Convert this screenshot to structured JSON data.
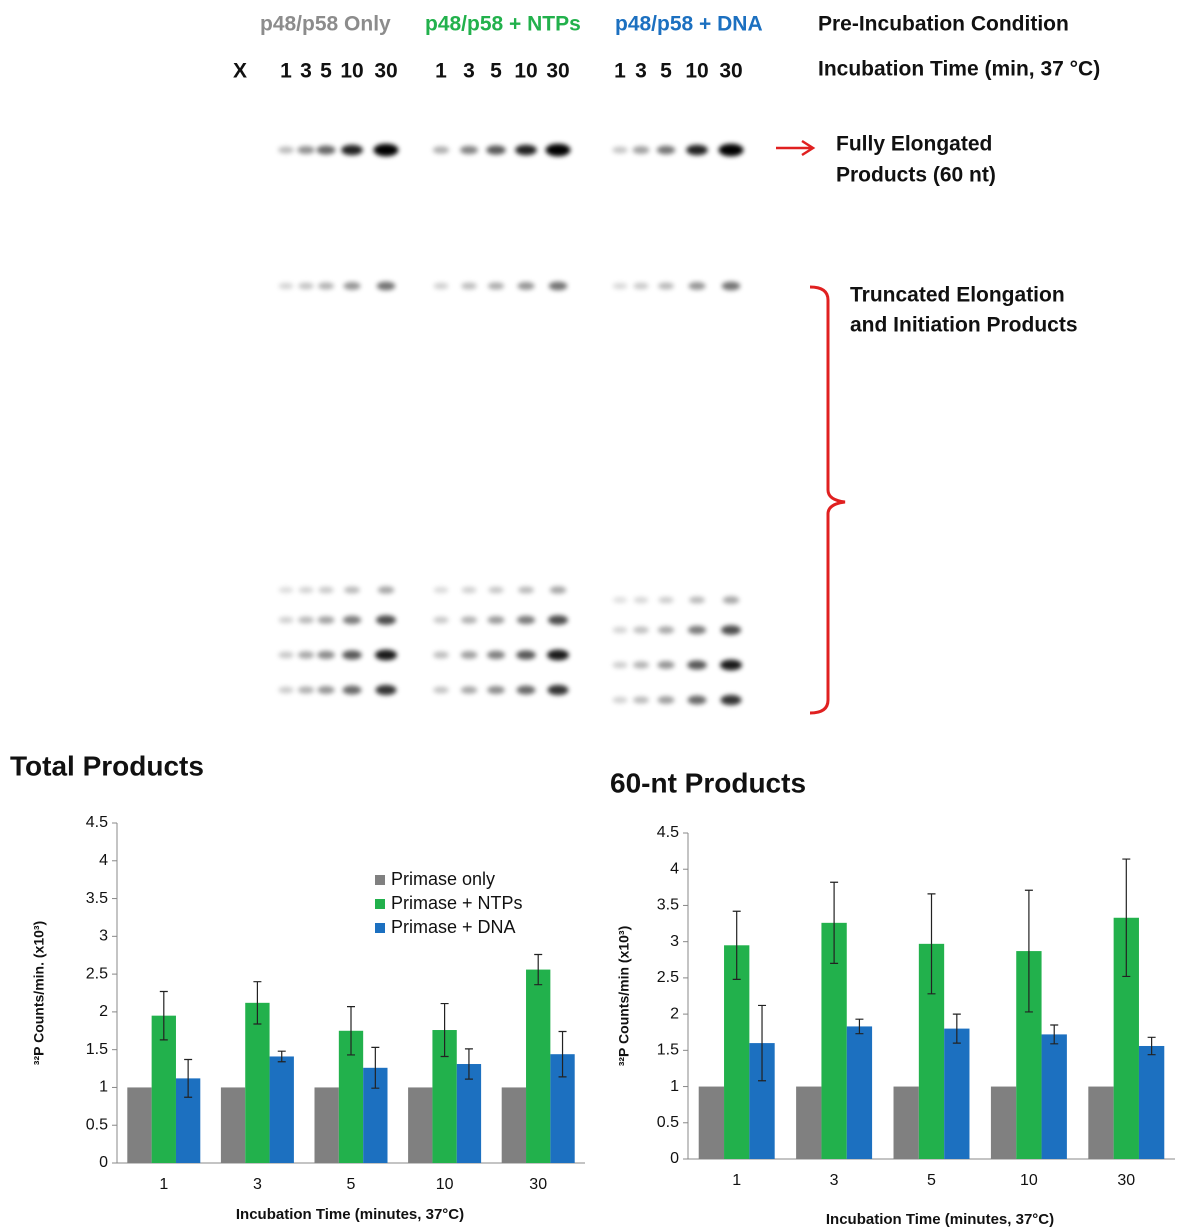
{
  "gel": {
    "conditions": [
      "p48/p58 Only",
      "p48/p58 + NTPs",
      "p48/p58 + DNA"
    ],
    "condition_heading": "Pre-Incubation Condition",
    "lane_labels": [
      "X",
      "1",
      "3",
      "5",
      "10",
      "30",
      "1",
      "3",
      "5",
      "10",
      "30",
      "1",
      "3",
      "5",
      "10",
      "30"
    ],
    "time_heading": "Incubation Time (min, 37 °C)",
    "full_label": [
      "Fully Elongated",
      "Products (60 nt)"
    ],
    "truncated_label": [
      "Truncated Elongation",
      "and Initiation Products"
    ]
  },
  "chart_data": [
    {
      "type": "bar",
      "title": "Total Products",
      "ylabel": "³²P Counts/min. (x10³)",
      "xlabel": "Incubation Time (minutes, 37°C)",
      "categories": [
        "1",
        "3",
        "5",
        "10",
        "30"
      ],
      "series": [
        {
          "name": "Primase only",
          "color": "#808080",
          "values": [
            1,
            1,
            1,
            1,
            1
          ]
        },
        {
          "name": "Primase + NTPs",
          "color": "#22b14c",
          "values": [
            1.95,
            2.12,
            1.75,
            1.76,
            2.56
          ],
          "errors": [
            0.32,
            0.28,
            0.32,
            0.35,
            0.2
          ]
        },
        {
          "name": "Primase + DNA",
          "color": "#1c70c0",
          "values": [
            1.12,
            1.41,
            1.26,
            1.31,
            1.44
          ],
          "errors": [
            0.25,
            0.07,
            0.27,
            0.2,
            0.3
          ]
        }
      ],
      "ylim": [
        0,
        4.5
      ],
      "yticks": [
        0,
        0.5,
        1,
        1.5,
        2,
        2.5,
        3,
        3.5,
        4,
        4.5
      ],
      "legend": "upper right"
    },
    {
      "type": "bar",
      "title": "60-nt Products",
      "ylabel": "³²P Counts/min (x10³)",
      "xlabel": "Incubation Time (minutes, 37°C)",
      "categories": [
        "1",
        "3",
        "5",
        "10",
        "30"
      ],
      "series": [
        {
          "color": "#808080",
          "values": [
            1,
            1,
            1,
            1,
            1
          ]
        },
        {
          "color": "#22b14c",
          "values": [
            2.95,
            3.26,
            2.97,
            2.87,
            3.33
          ],
          "errors": [
            0.47,
            0.56,
            0.69,
            0.84,
            0.81
          ]
        },
        {
          "color": "#1c70c0",
          "values": [
            1.6,
            1.83,
            1.8,
            1.72,
            1.56
          ],
          "errors": [
            0.52,
            0.1,
            0.2,
            0.13,
            0.12
          ]
        }
      ],
      "ylim": [
        0,
        4.5
      ],
      "yticks": [
        0,
        0.5,
        1,
        1.5,
        2,
        2.5,
        3,
        3.5,
        4,
        4.5
      ]
    }
  ]
}
